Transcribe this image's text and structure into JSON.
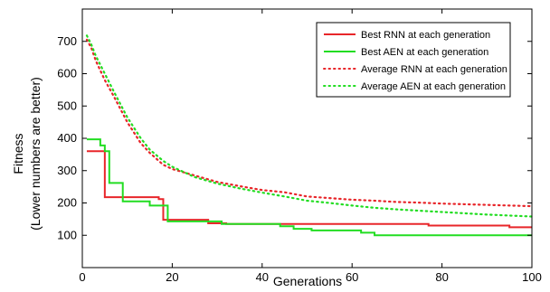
{
  "chart_data": {
    "type": "line",
    "xlabel": "Generations",
    "ylabel_line1": "Fitness",
    "ylabel_line2": "(Lower numbers are better)",
    "xlim": [
      0,
      100
    ],
    "ylim": [
      0,
      800
    ],
    "xticks": [
      0,
      20,
      40,
      60,
      80,
      100
    ],
    "yticks": [
      100,
      200,
      300,
      400,
      500,
      600,
      700
    ],
    "grid": false,
    "legend_position": "top-right",
    "series": [
      {
        "name": "Best RNN at each generation",
        "color": "#e8262a",
        "style": "solid",
        "step": true,
        "points": [
          [
            1,
            360
          ],
          [
            4,
            360
          ],
          [
            5,
            218
          ],
          [
            12,
            218
          ],
          [
            17,
            212
          ],
          [
            18,
            148
          ],
          [
            27,
            148
          ],
          [
            28,
            137
          ],
          [
            31,
            137
          ],
          [
            32,
            135
          ],
          [
            76,
            135
          ],
          [
            77,
            130
          ],
          [
            94,
            130
          ],
          [
            95,
            125
          ],
          [
            100,
            125
          ]
        ]
      },
      {
        "name": "Best AEN at each generation",
        "color": "#22dd22",
        "style": "solid",
        "step": true,
        "points": [
          [
            1,
            397
          ],
          [
            3,
            397
          ],
          [
            4,
            378
          ],
          [
            5,
            360
          ],
          [
            6,
            262
          ],
          [
            8,
            262
          ],
          [
            9,
            205
          ],
          [
            14,
            205
          ],
          [
            15,
            192
          ],
          [
            18,
            192
          ],
          [
            19,
            143
          ],
          [
            30,
            143
          ],
          [
            31,
            135
          ],
          [
            43,
            135
          ],
          [
            44,
            128
          ],
          [
            46,
            128
          ],
          [
            47,
            120
          ],
          [
            50,
            120
          ],
          [
            51,
            115
          ],
          [
            61,
            115
          ],
          [
            62,
            108
          ],
          [
            64,
            108
          ],
          [
            65,
            100
          ],
          [
            100,
            100
          ]
        ]
      },
      {
        "name": "Average RNN at each generation",
        "color": "#e8262a",
        "style": "dotted",
        "step": false,
        "points": [
          [
            1,
            705
          ],
          [
            2,
            680
          ],
          [
            3,
            640
          ],
          [
            5,
            580
          ],
          [
            7,
            530
          ],
          [
            10,
            450
          ],
          [
            13,
            385
          ],
          [
            15,
            355
          ],
          [
            18,
            318
          ],
          [
            20,
            305
          ],
          [
            25,
            285
          ],
          [
            30,
            265
          ],
          [
            35,
            252
          ],
          [
            40,
            240
          ],
          [
            45,
            233
          ],
          [
            50,
            220
          ],
          [
            55,
            215
          ],
          [
            60,
            210
          ],
          [
            65,
            207
          ],
          [
            70,
            203
          ],
          [
            75,
            201
          ],
          [
            80,
            198
          ],
          [
            85,
            196
          ],
          [
            90,
            194
          ],
          [
            95,
            192
          ],
          [
            100,
            190
          ]
        ]
      },
      {
        "name": "Average AEN at each generation",
        "color": "#22dd22",
        "style": "dotted",
        "step": false,
        "points": [
          [
            1,
            718
          ],
          [
            2,
            690
          ],
          [
            3,
            655
          ],
          [
            5,
            600
          ],
          [
            7,
            545
          ],
          [
            10,
            465
          ],
          [
            13,
            400
          ],
          [
            15,
            365
          ],
          [
            18,
            330
          ],
          [
            20,
            312
          ],
          [
            25,
            280
          ],
          [
            30,
            260
          ],
          [
            35,
            245
          ],
          [
            40,
            232
          ],
          [
            45,
            220
          ],
          [
            50,
            207
          ],
          [
            55,
            200
          ],
          [
            60,
            192
          ],
          [
            65,
            185
          ],
          [
            70,
            180
          ],
          [
            75,
            176
          ],
          [
            80,
            172
          ],
          [
            85,
            168
          ],
          [
            90,
            164
          ],
          [
            95,
            161
          ],
          [
            100,
            158
          ]
        ]
      }
    ]
  }
}
